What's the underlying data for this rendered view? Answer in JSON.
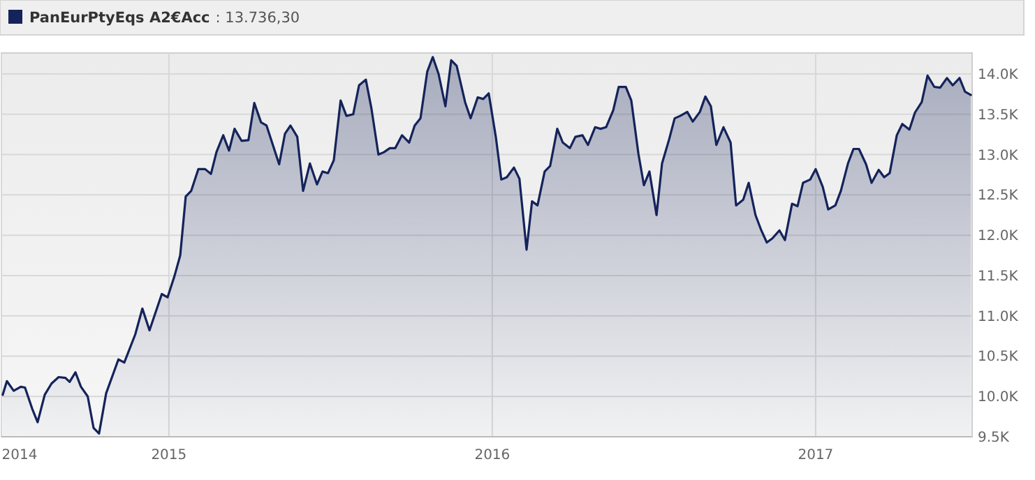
{
  "chart_data": {
    "type": "area",
    "legend": "top left",
    "grid": true,
    "marker": "none",
    "line_style": "solid",
    "annotations": [
      ": 13.736,30"
    ],
    "xlim": [
      2014.482,
      2017.484
    ],
    "xticks": [
      {
        "value": 2014.482,
        "label": "2014"
      },
      {
        "value": 2015,
        "label": "2015"
      },
      {
        "value": 2016,
        "label": "2016"
      },
      {
        "value": 2017,
        "label": "2017"
      }
    ],
    "ylim": [
      9500,
      14260
    ],
    "yticks": [
      {
        "value": 9500,
        "label": "9.5K"
      },
      {
        "value": 10000,
        "label": "10.0K"
      },
      {
        "value": 10500,
        "label": "10.5K"
      },
      {
        "value": 11000,
        "label": "11.0K"
      },
      {
        "value": 11500,
        "label": "11.5K"
      },
      {
        "value": 12000,
        "label": "12.0K"
      },
      {
        "value": 12500,
        "label": "12.5K"
      },
      {
        "value": 13000,
        "label": "13.0K"
      },
      {
        "value": 13500,
        "label": "13.5K"
      },
      {
        "value": 14000,
        "label": "14.0K"
      }
    ],
    "series": [
      {
        "name": "PanEurPtyEqs A2€Acc",
        "color": "#14235a",
        "x": [
          2014.486,
          2014.499,
          2014.52,
          2014.542,
          2014.555,
          2014.577,
          2014.594,
          2014.616,
          2014.637,
          2014.659,
          2014.68,
          2014.693,
          2014.711,
          2014.728,
          2014.749,
          2014.767,
          2014.784,
          2014.806,
          2014.844,
          2014.862,
          2014.896,
          2014.918,
          2014.94,
          2014.978,
          2014.996,
          2015.017,
          2015.035,
          2015.052,
          2015.069,
          2015.091,
          2015.112,
          2015.13,
          2015.147,
          2015.168,
          2015.186,
          2015.203,
          2015.225,
          2015.246,
          2015.264,
          2015.285,
          2015.302,
          2015.341,
          2015.359,
          2015.376,
          2015.397,
          2015.415,
          2015.436,
          2015.458,
          2015.475,
          2015.492,
          2015.51,
          2015.531,
          2015.549,
          2015.57,
          2015.588,
          2015.609,
          2015.626,
          2015.648,
          2015.665,
          2015.683,
          2015.7,
          2015.721,
          2015.743,
          2015.76,
          2015.778,
          2015.799,
          2015.816,
          2015.834,
          2015.855,
          2015.873,
          2015.89,
          2015.916,
          2015.933,
          2015.955,
          2015.972,
          2015.989,
          2016.011,
          2016.028,
          2016.045,
          2016.067,
          2016.084,
          2016.106,
          2016.123,
          2016.14,
          2016.162,
          2016.179,
          2016.201,
          2016.218,
          2016.24,
          2016.257,
          2016.279,
          2016.296,
          2016.318,
          2016.335,
          2016.352,
          2016.374,
          2016.391,
          2016.413,
          2016.43,
          2016.452,
          2016.469,
          2016.486,
          2016.508,
          2016.525,
          2016.547,
          2016.564,
          2016.581,
          2016.603,
          2016.62,
          2016.642,
          2016.659,
          2016.676,
          2016.693,
          2016.715,
          2016.737,
          2016.754,
          2016.776,
          2016.793,
          2016.814,
          2016.832,
          2016.849,
          2016.866,
          2016.888,
          2016.905,
          2016.927,
          2016.944,
          2016.961,
          2016.983,
          2017.0,
          2017.022,
          2017.039,
          2017.061,
          2017.078,
          2017.1,
          2017.117,
          2017.134,
          2017.156,
          2017.173,
          2017.195,
          2017.212,
          2017.229,
          2017.251,
          2017.268,
          2017.29,
          2017.307,
          2017.328,
          2017.346,
          2017.367,
          2017.385,
          2017.406,
          2017.424,
          2017.445,
          2017.462,
          2017.48
        ],
        "values": [
          10020,
          10190,
          10070,
          10120,
          10110,
          9850,
          9680,
          10020,
          10160,
          10240,
          10230,
          10180,
          10300,
          10120,
          10000,
          9610,
          9540,
          10040,
          10460,
          10420,
          10770,
          11090,
          10820,
          11270,
          11230,
          11490,
          11750,
          12480,
          12550,
          12820,
          12820,
          12760,
          13030,
          13240,
          13050,
          13320,
          13170,
          13180,
          13640,
          13400,
          13360,
          12880,
          13260,
          13360,
          13220,
          12550,
          12890,
          12630,
          12790,
          12770,
          12930,
          13670,
          13480,
          13500,
          13860,
          13930,
          13580,
          13000,
          13030,
          13080,
          13080,
          13240,
          13150,
          13360,
          13450,
          14030,
          14210,
          14000,
          13600,
          14170,
          14100,
          13650,
          13450,
          13710,
          13690,
          13760,
          13220,
          12690,
          12720,
          12840,
          12700,
          11820,
          12420,
          12370,
          12790,
          12860,
          13320,
          13150,
          13080,
          13220,
          13240,
          13120,
          13340,
          13320,
          13340,
          13550,
          13840,
          13840,
          13670,
          13010,
          12620,
          12790,
          12250,
          12890,
          13190,
          13450,
          13480,
          13530,
          13410,
          13530,
          13720,
          13600,
          13120,
          13340,
          13150,
          12370,
          12440,
          12650,
          12250,
          12060,
          11910,
          11960,
          12060,
          11940,
          12390,
          12360,
          12650,
          12690,
          12820,
          12600,
          12320,
          12370,
          12550,
          12890,
          13070,
          13070,
          12880,
          12650,
          12810,
          12720,
          12770,
          13240,
          13380,
          13310,
          13520,
          13650,
          13980,
          13840,
          13830,
          13950,
          13860,
          13950,
          13780,
          13740
        ]
      }
    ]
  }
}
